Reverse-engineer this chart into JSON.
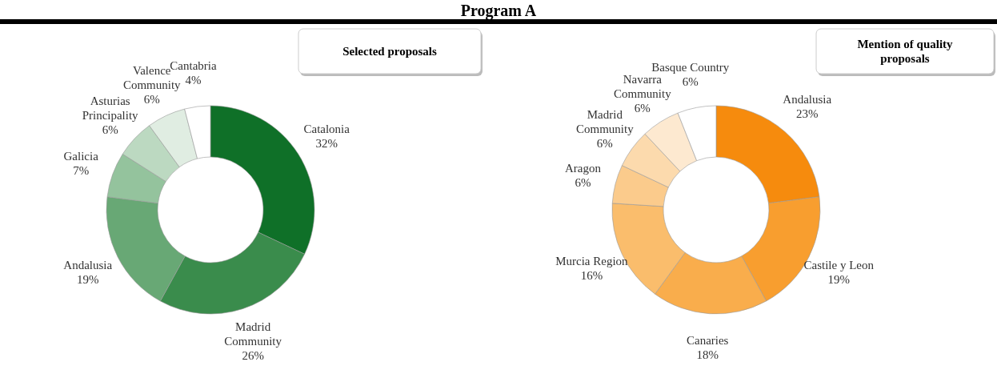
{
  "chart_data": [
    {
      "type": "donut",
      "title": "Selected proposals",
      "annotations": [
        "Program A"
      ],
      "categories": [
        "Catalonia",
        "Madrid Community",
        "Andalusia",
        "Galicia",
        "Asturias Principality",
        "Valence Community",
        "Cantabria"
      ],
      "values": [
        32,
        26,
        19,
        7,
        6,
        6,
        4
      ],
      "value_labels": [
        "32%",
        "26%",
        "19%",
        "7%",
        "6%",
        "6%",
        "4%"
      ],
      "colors": [
        "#0f7028",
        "#3a8c4c",
        "#68a875",
        "#94c39d",
        "#bcd9c1",
        "#e0ede2",
        "#ffffff"
      ]
    },
    {
      "type": "donut",
      "title": "Mention of quality proposals",
      "categories": [
        "Andalusia",
        "Castile y Leon",
        "Canaries",
        "Murcia Region",
        "Aragon",
        "Madrid Community",
        "Navarra Community",
        "Basque Country"
      ],
      "values": [
        23,
        19,
        18,
        16,
        6,
        6,
        6,
        6
      ],
      "value_labels": [
        "23%",
        "19%",
        "18%",
        "16%",
        "6%",
        "6%",
        "6%",
        "6%"
      ],
      "colors": [
        "#f68b0d",
        "#f89e2f",
        "#f9ad4c",
        "#fabd6c",
        "#fbcb8c",
        "#fcdaad",
        "#fde9d0",
        "#ffffff"
      ]
    }
  ]
}
